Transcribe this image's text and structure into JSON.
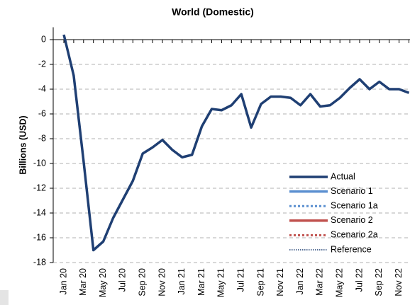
{
  "chart_data": {
    "type": "line",
    "title": "World (Domestic)",
    "y_label": "Billions (USD)",
    "categories": [
      "Jan 20",
      null,
      "Mar 20",
      null,
      "May 20",
      null,
      "Jul 20",
      null,
      "Sep 20",
      null,
      "Nov 20",
      null,
      "Jan 21",
      null,
      "Mar 21",
      null,
      "May 21",
      null,
      "Jul 21",
      null,
      "Sep 21",
      null,
      "Nov 21",
      null,
      "Jan 22",
      null,
      "Mar 22",
      null,
      "May 22",
      null,
      "Jul 22",
      null,
      "Sep 22",
      null,
      "Nov 22",
      null
    ],
    "series": [
      {
        "name": "Actual",
        "color": "#1f3f73",
        "dash": "solid",
        "values": [
          0.4,
          -2.9,
          -9.8,
          -17.0,
          -16.3,
          -14.4,
          -12.9,
          -11.4,
          -9.2,
          -8.7,
          -8.1,
          -8.9,
          -9.5,
          -9.3,
          -7.0,
          -5.6,
          -5.7,
          -5.3,
          -4.4,
          -7.1,
          -5.2,
          -4.6,
          -4.6,
          -4.7,
          -5.3,
          -4.4,
          -5.4,
          -5.3,
          -4.7,
          -3.9,
          -3.2,
          -4.0,
          -3.4,
          -4.0,
          -4.0,
          -4.3
        ]
      },
      {
        "name": "Scenario 1",
        "color": "#5b8fd0",
        "dash": "solid",
        "values": [
          null,
          null,
          null,
          null,
          null,
          null,
          null,
          null,
          null,
          null,
          null,
          null,
          null,
          null,
          null,
          null,
          null,
          null,
          null,
          null,
          null,
          null,
          null,
          null,
          null,
          null,
          null,
          null,
          null,
          null,
          null,
          null,
          null,
          null,
          null,
          null
        ]
      },
      {
        "name": "Scenario 1a",
        "color": "#5b8fd0",
        "dash": "dotted",
        "values": [
          null,
          null,
          null,
          null,
          null,
          null,
          null,
          null,
          null,
          null,
          null,
          null,
          null,
          null,
          null,
          null,
          null,
          null,
          null,
          null,
          null,
          null,
          null,
          null,
          null,
          null,
          null,
          null,
          null,
          null,
          null,
          null,
          null,
          null,
          null,
          null
        ]
      },
      {
        "name": "Scenario 2",
        "color": "#c0504d",
        "dash": "solid",
        "values": [
          null,
          null,
          null,
          null,
          null,
          null,
          null,
          null,
          null,
          null,
          null,
          null,
          null,
          null,
          null,
          null,
          null,
          null,
          null,
          null,
          null,
          null,
          null,
          null,
          null,
          null,
          null,
          null,
          null,
          null,
          null,
          null,
          null,
          null,
          null,
          null
        ]
      },
      {
        "name": "Scenario 2a",
        "color": "#c0504d",
        "dash": "dotted",
        "values": [
          null,
          null,
          null,
          null,
          null,
          null,
          null,
          null,
          null,
          null,
          null,
          null,
          null,
          null,
          null,
          null,
          null,
          null,
          null,
          null,
          null,
          null,
          null,
          null,
          null,
          null,
          null,
          null,
          null,
          null,
          null,
          null,
          null,
          null,
          null,
          null
        ]
      },
      {
        "name": "Reference",
        "color": "#1f3f73",
        "dash": "fine-dotted",
        "values": [
          null,
          null,
          null,
          null,
          null,
          null,
          null,
          null,
          null,
          null,
          null,
          null,
          null,
          null,
          null,
          null,
          null,
          null,
          null,
          null,
          null,
          null,
          null,
          null,
          null,
          null,
          null,
          null,
          null,
          null,
          null,
          null,
          null,
          null,
          null,
          null
        ]
      }
    ],
    "ylim": [
      -18,
      1
    ],
    "yticks": [
      0,
      -2,
      -4,
      -6,
      -8,
      -10,
      -12,
      -14,
      -16,
      -18
    ],
    "grid": true,
    "legend": "lower right"
  }
}
